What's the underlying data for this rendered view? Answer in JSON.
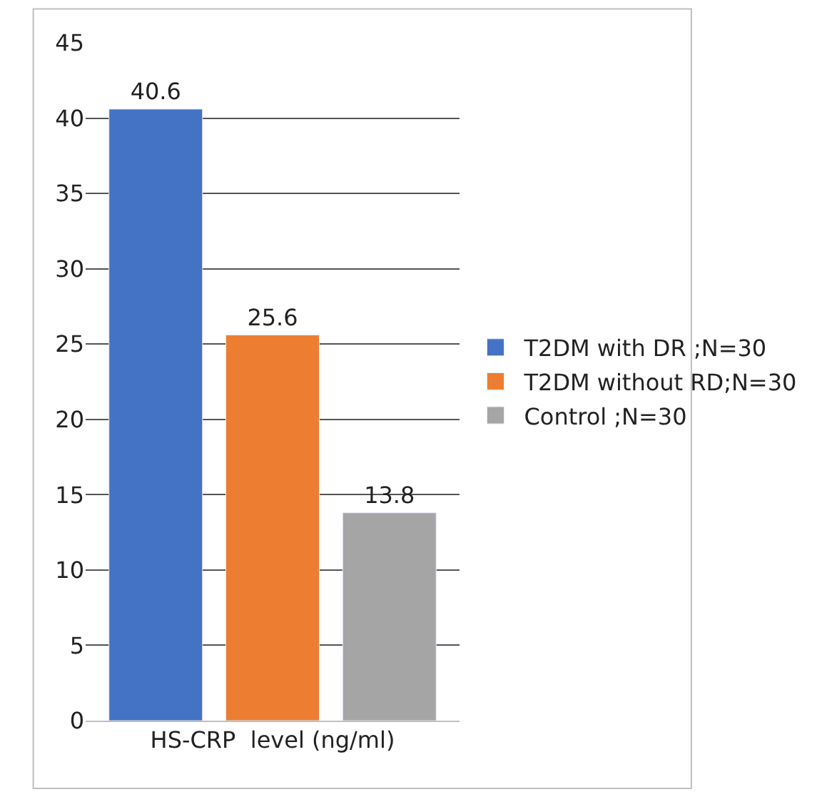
{
  "chart_data": {
    "type": "bar",
    "categories": [
      null,
      null,
      null
    ],
    "xlabel": "HS-CRP  level (ng/ml)",
    "series": [
      {
        "name": "T2DM with DR ;N=30",
        "color": "#4472c4",
        "values": [
          40.6,
          null,
          null
        ]
      },
      {
        "name": "T2DM without RD;N=30",
        "color": "#ed7d31",
        "values": [
          null,
          25.6,
          null
        ]
      },
      {
        "name": "Control ;N=30",
        "color": "#a5a5a5",
        "values": [
          null,
          null,
          13.8
        ]
      }
    ],
    "ylim": [
      0,
      45
    ],
    "yticks": [
      0,
      5,
      10,
      15,
      20,
      25,
      30,
      35,
      40,
      45
    ],
    "grid": "y",
    "legend": "right",
    "data_labels": true
  }
}
